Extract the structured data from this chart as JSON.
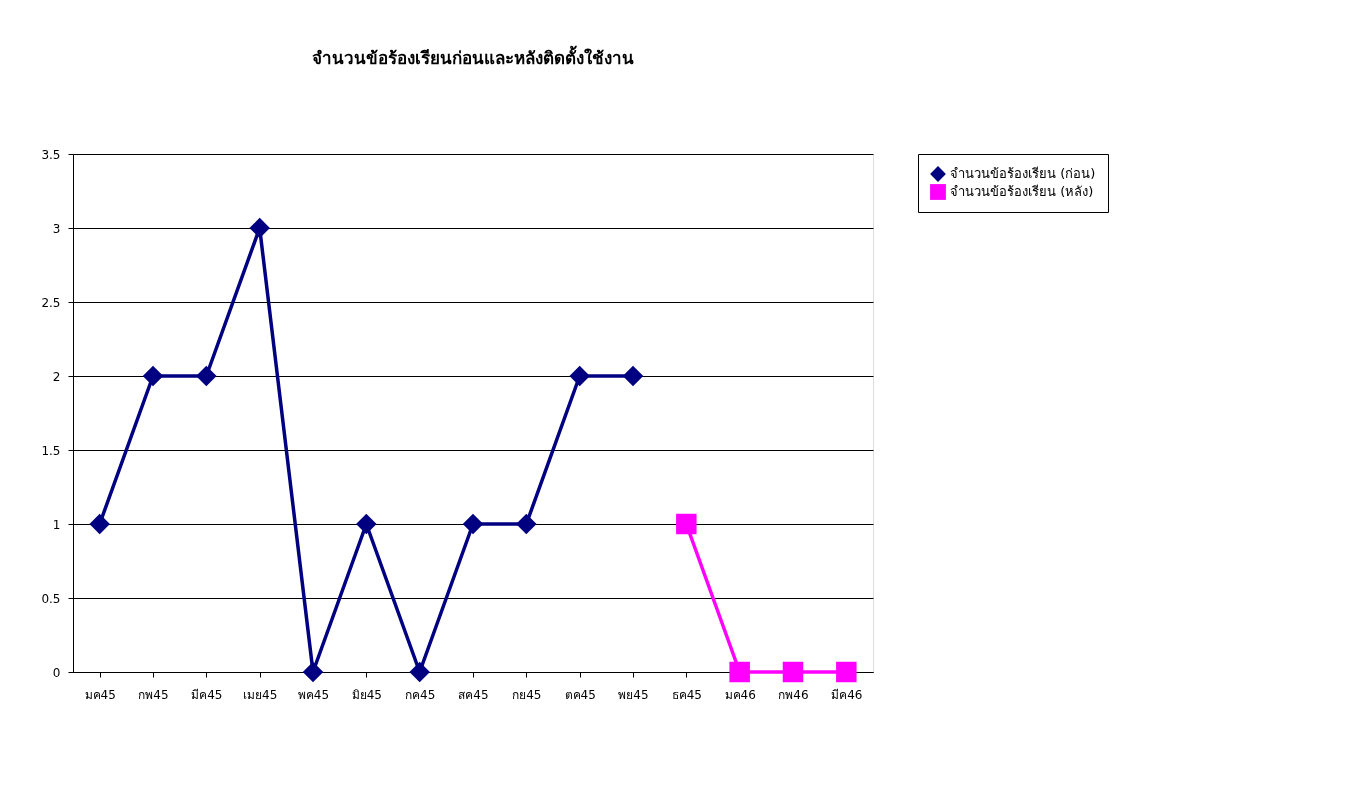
{
  "chart_data": {
    "type": "line",
    "title": "จำนวนข้อร้องเรียนก่อนและหลังติดตั้งใช้งาน",
    "categories": [
      "มค45",
      "กพ45",
      "มีค45",
      "เมย45",
      "พค45",
      "มิย45",
      "กค45",
      "สค45",
      "กย45",
      "ตค45",
      "พย45",
      "ธค45",
      "มค46",
      "กพ46",
      "มีค46"
    ],
    "series": [
      {
        "name": "จำนวนข้อร้องเรียน (ก่อน)",
        "color": "#000080",
        "marker": "diamond",
        "values": [
          1,
          2,
          2,
          3,
          0,
          1,
          0,
          1,
          1,
          2,
          2,
          null,
          null,
          null,
          null
        ]
      },
      {
        "name": "จำนวนข้อร้องเรียน (หลัง)",
        "color": "#ff00ff",
        "marker": "square",
        "values": [
          null,
          null,
          null,
          null,
          null,
          null,
          null,
          null,
          null,
          null,
          null,
          1,
          0,
          0,
          0
        ]
      }
    ],
    "ylim": [
      0,
      3.5
    ],
    "yticks": [
      0,
      0.5,
      1,
      1.5,
      2,
      2.5,
      3,
      3.5
    ],
    "grid": "y",
    "legend": "right"
  }
}
